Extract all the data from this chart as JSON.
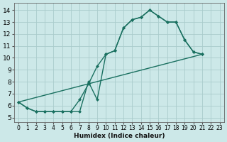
{
  "xlabel": "Humidex (Indice chaleur)",
  "background_color": "#cce8e8",
  "grid_color": "#aacccc",
  "line_color": "#1a7060",
  "xlim": [
    -0.5,
    23.5
  ],
  "ylim": [
    4.6,
    14.6
  ],
  "xticks": [
    0,
    1,
    2,
    3,
    4,
    5,
    6,
    7,
    8,
    9,
    10,
    11,
    12,
    13,
    14,
    15,
    16,
    17,
    18,
    19,
    20,
    21,
    22,
    23
  ],
  "yticks": [
    5,
    6,
    7,
    8,
    9,
    10,
    11,
    12,
    13,
    14
  ],
  "curve1_x": [
    0,
    1,
    2,
    3,
    4,
    5,
    6,
    7,
    8,
    9,
    10,
    11,
    12,
    13,
    14,
    15,
    16,
    17,
    18,
    19,
    20,
    21
  ],
  "curve1_y": [
    6.3,
    5.8,
    5.5,
    5.5,
    5.5,
    5.5,
    5.5,
    6.5,
    7.8,
    9.3,
    10.3,
    10.6,
    12.5,
    13.2,
    13.4,
    14.0,
    13.5,
    13.0,
    13.0,
    11.5,
    10.5,
    10.3
  ],
  "curve2_x": [
    0,
    1,
    2,
    3,
    4,
    5,
    6,
    7,
    8,
    9,
    10,
    11,
    12,
    13,
    14,
    15,
    16,
    17,
    18,
    19,
    20,
    21
  ],
  "curve2_y": [
    6.3,
    5.8,
    5.5,
    5.5,
    5.5,
    5.5,
    5.5,
    5.5,
    8.0,
    6.5,
    10.3,
    10.6,
    12.5,
    13.2,
    13.4,
    14.0,
    13.5,
    13.0,
    13.0,
    11.5,
    10.5,
    10.3
  ],
  "line3_x": [
    0,
    21
  ],
  "line3_y": [
    6.3,
    10.3
  ],
  "marker_size": 2.5,
  "line_width": 1.0,
  "tick_fontsize_x": 5.5,
  "tick_fontsize_y": 6.5,
  "xlabel_fontsize": 6.5,
  "figsize": [
    3.2,
    2.0
  ],
  "dpi": 100
}
